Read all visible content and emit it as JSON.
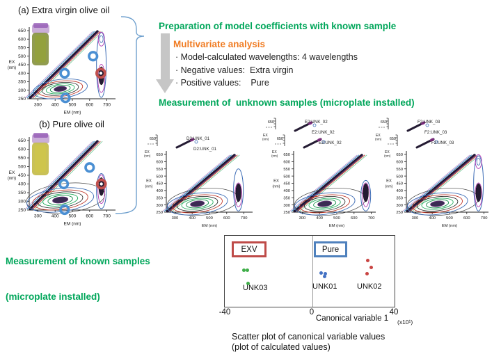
{
  "colors": {
    "heading_green": "#00A65A",
    "heading_orange": "#F07C23",
    "brace_blue": "#6FA0CE",
    "arrow_gray": "#C6C6C6",
    "exv_border": "#BE4B48",
    "pure_border": "#4F81BD",
    "dot_green": "#3FAE49",
    "dot_blue": "#4472C4",
    "dot_red": "#C94442"
  },
  "left_panel": {
    "plot_a_title": "(a) Extra virgin olive oil",
    "plot_b_title": "(b) Pure olive oil",
    "known_caption_line1": "Measurement of known samples",
    "known_caption_line2": "(microplate installed)"
  },
  "flow": {
    "step1": "Preparation of model coefficients with known sample",
    "analysis_title": "Multivariate analysis",
    "bullet1": "· Model-calculated wavelengths: 4 wavelengths",
    "bullet2": "· Negative values:  Extra virgin",
    "bullet3": "· Positive values:    Pure",
    "step2": "Measurement of  unknown samples (microplate installed)"
  },
  "eem_axes": {
    "ex_label_1": "EX",
    "ex_label_2": "(nm)",
    "em_label": "EM (nm)",
    "partial_tick": "650",
    "y_ticks": [
      650,
      600,
      550,
      500,
      450,
      400,
      350,
      300,
      250
    ],
    "x_ticks": [
      300,
      400,
      500,
      600,
      700
    ]
  },
  "unknown_plots": [
    {
      "label": "D2:UNK_01",
      "cascade_count": 2
    },
    {
      "label": "E2:UNK_02",
      "cascade_count": 3
    },
    {
      "label": "F2:UNK_03",
      "cascade_count": 3
    }
  ],
  "scatter": {
    "exv_label": "EXV",
    "pure_label": "Pure",
    "tick_neg": "-40",
    "tick_zero": "0",
    "tick_pos": "40",
    "xlabel": "Canonical variable 1",
    "scale_note": "(x10¹)",
    "series_label_1": "UNK03",
    "series_label_2": "UNK01",
    "series_label_3": "UNK02",
    "caption_line1": "Scatter plot of canonical variable values",
    "caption_line2": "(plot of calculated values)"
  },
  "chart_data": [
    {
      "type": "scatter",
      "title": "Scatter plot of canonical variable values (plot of calculated values)",
      "xlabel": "Canonical variable 1",
      "x_scale_note": "(x10¹)",
      "xlim": [
        -40,
        40
      ],
      "x_ticks": [
        -40,
        0,
        40
      ],
      "legend": [
        "EXV",
        "Pure"
      ],
      "legend_position": "inside-top",
      "grid": false,
      "series": [
        {
          "name": "UNK03",
          "classified_as": "EXV (negative values)",
          "color": "#3FAE49",
          "points": [
            [
              -31,
              0.49
            ],
            [
              -29.5,
              0.49
            ],
            [
              -29,
              0.67
            ]
          ]
        },
        {
          "name": "UNK01",
          "classified_as": "Pure (positive values)",
          "color": "#4472C4",
          "points": [
            [
              5.5,
              0.52
            ],
            [
              7,
              0.57
            ],
            [
              7.5,
              0.53
            ]
          ]
        },
        {
          "name": "UNK02",
          "classified_as": "Pure (positive values)",
          "color": "#C94442",
          "points": [
            [
              27.5,
              0.35
            ],
            [
              29,
              0.45
            ],
            [
              27,
              0.53
            ]
          ]
        }
      ]
    },
    {
      "type": "heatmap",
      "subtype": "fluorescence-EEM-contour",
      "plots": [
        "(a) Extra virgin olive oil",
        "(b) Pure olive oil",
        "D2:UNK_01",
        "E2:UNK_02",
        "F2:UNK_03"
      ],
      "xlabel": "EM (nm)",
      "ylabel": "EX (nm)",
      "xlim": [
        250,
        750
      ],
      "ylim": [
        250,
        650
      ],
      "x_ticks": [
        300,
        400,
        500,
        600,
        700
      ],
      "y_ticks": [
        250,
        300,
        350,
        400,
        450,
        500,
        550,
        600,
        650
      ]
    }
  ]
}
